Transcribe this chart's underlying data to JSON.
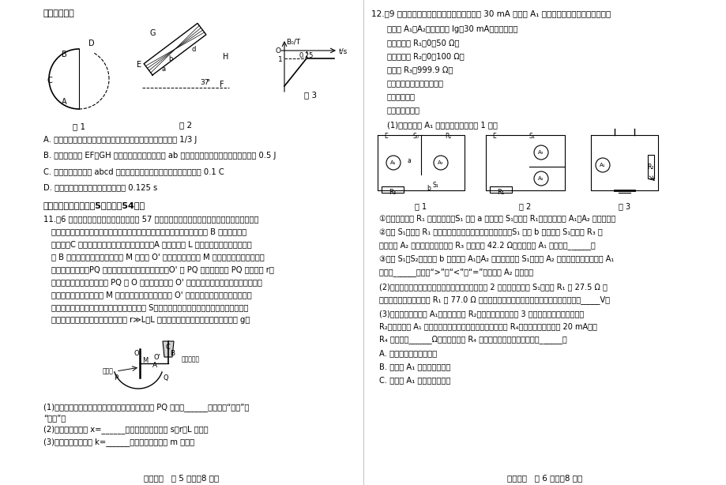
{
  "background_color": "#ffffff",
  "page_width": 9.2,
  "page_height": 6.14,
  "left_header": "说法正确的是",
  "fig1_label": "图 1",
  "fig2_label": "图 2",
  "fig3_label": "图 3",
  "options_left": [
    "A. 金属棒在半圆弧轨道运动的过程中导体棒上产生的焦耳热为 1/3 J",
    "B. 金属棒从落到 EF、GH 轨道上到运动到虚线边界 ab 的过程中，导体棒上产生的焦耳热为 0.5 J",
    "C. 金属棒在通过虚线 abcd 区域的过程中通过导体棒横截面的电量为 0.1 C",
    "D. 金属棒穿过虚线磁场区域的时间为 0.125 s"
  ],
  "section3_header": "三、非选择题：本题八5小题，八54分。",
  "q11_title": "11.（6 分）某同学通过学习人教版必修一 57 页的平面镜观察桌面的微小形变的实验后，受此启",
  "q11_lines": [
    "发，设计一个测量弹性轻杆的形变量与其力度系数的实验，如图所示。图中 B 为待测量的弹",
    "性轻杆，C 为底部带有小孔且装满细砂的小桶。A 为一长度为 L 的轻质刚性杆，一端与弹性",
    "杆 B 连接，另一端与轻质平面镜 M 的中心 O' 相连，且与平面镜 M 垂直。轻质平面镜竖直放",
    "在水平实验台上，PQ 为一带有弧长刻度的透明圆弧，O' 为 PQ 的圆心，圆弧 PQ 的半径为 r，",
    "不挡砂桶时，一束细光束经 PQ 的 O 点射到平面镜的 O' 点后原路返回，推上砂桶后，使平面",
    "镜发生偏转，入射光束在 M 上入射点可以近似认为仍在 O' 点，通过读取反射光在圆弧上的",
    "位置，测得光点在透明读数条上移动的弧长为 S，可以测得弹性轻杆的形变量，根据胡克定律",
    "就可以确定弹性杆的力度系数。已知 r≫L，L 远大于弹性杆的形变量，重力加速度为 g。"
  ],
  "q11_sub1": "(1)随着砂桶中细砂的不断流出，反射光线的光点在 PQ 圆弧上______移动（填“向上”或",
  "q11_sub1b": "“向下”）",
  "q11_sub2": "(2)弹性杆的形变量 x=______（用光点移动的弧长 s、r、L 表示）",
  "q11_sub3": "(3)弹性杆的力度系数 k=______（砂桶的总质量用 m 表示）",
  "page_footer_left": "高三物理   第 5 页（八8 页）",
  "right_q12_header": "12.（9 分）某同学使用如下器材测量一量程为 30 mA 电流表 A₁ 的内阻，并将其改装成欧姆表。",
  "right_items": [
    "电流表 A₁、A₂（量程均为 Ig＝30 mA，内阻未知）",
    "滑动变阻器 R₁（0～50 Ω）",
    "滑动变阻器 R₂（0～100 Ω）",
    "电阻笱 R₃（999.9 Ω）",
    "电池盒（装有两节干电池）",
    "开关导线若干",
    "实验步骤如下："
  ],
  "right_step1": "(1)测量电流表 A₁ 内阻的实验电路如图 1 所示",
  "right_circuit_fig1": "图 1",
  "right_circuit_fig2": "图 2",
  "right_circuit_fig3": "图 3",
  "right_step1_items": [
    "①将滑动变阻器 R₁ 调至最大値，S₁ 置于 a 处，闭合 S₁，调节 R₁，直到电流表 A₁、A₂ 均居满偏。",
    "②断开 S₁，保持 R₁ 滑片位置不变，电阻笱阻値调至最大，S₁ 置于 b 处，闭合 S₁，调节 R₃ 直",
    "到电流表 A₂ 居满偏，读出电阻笱 R₃ 的示数为 42.2 Ω，则电流表 A₁ 的内阻为______。",
    "③断开 S₁、S₂，仍置于 b 处，调换 A₁、A₂ 的位置，闭合 S₁，发现 A₂ 刚好满偏，说明电流表 A₁",
    "的内阻______（选填“>”、“<”或“=”）电流表 A₂ 的内阻。"
  ],
  "right_step2": "(2)测量电池盒内两节电池的电动势：实验电路如图 2 所示，闭合开关 S₁，调节 R₁ 为 27.5 Ω 时",
  "right_step2b": "两电流表均居满偏，调节 R₁ 为 77.0 Ω 时两电流表半偏，则电池盒内两节电池的电动势为_____V。",
  "right_step3": "(3)将电池盒、电流表 A₁、滑动变阻器 R₂，两只表笔组成如图 3 所示电路，两表笔短接调节",
  "right_step3b": "R₂，使电流表 A₁ 满偏，断开表笔，在两表笔间接入一电阻 R₄，发现电流表读数为 20 mA，则",
  "right_step3c": "R₄ 的阻値为______Ω，若计算出的 R₄ 阻値偏小，以下可能的原因是______。",
  "right_options": [
    "A. 电源电动势测量値较小",
    "B. 电流表 A₁ 内阻测量値偏大",
    "C. 电流表 A₁ 内阻测量値偏小"
  ],
  "page_footer_right": "高三物理   第 6 页（八8 页）"
}
